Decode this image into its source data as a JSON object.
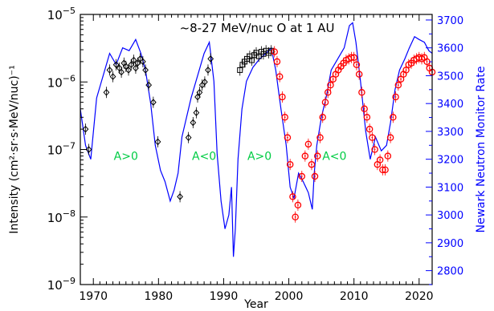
{
  "chart_data": {
    "type": "scatter",
    "title": "~8-27 MeV/nuc O at 1 AU",
    "xlabel": "Year",
    "ylabel": "Intensity (cm²·sr·s·MeV/nuc)⁻¹",
    "y2label": "Newark Neutron Monitor Rate",
    "xlim": [
      1968,
      2022
    ],
    "ylim": [
      1e-09,
      1e-05
    ],
    "yscale": "log",
    "y2lim": [
      2750,
      3720
    ],
    "x_ticks": [
      1970,
      1980,
      1990,
      2000,
      2010,
      2020
    ],
    "y_ticks": [
      {
        "value": 1e-09,
        "label": "10",
        "exp": "−9"
      },
      {
        "value": 1e-08,
        "label": "10",
        "exp": "−8"
      },
      {
        "value": 1e-07,
        "label": "10",
        "exp": "−7"
      },
      {
        "value": 1e-06,
        "label": "10",
        "exp": "−6"
      },
      {
        "value": 1e-05,
        "label": "10",
        "exp": "−5"
      }
    ],
    "y2_ticks": [
      2800,
      2900,
      3000,
      3100,
      3200,
      3300,
      3400,
      3500,
      3600,
      3700
    ],
    "colors": {
      "oxygen_early": "#000000",
      "oxygen_recent": "#ff0000",
      "neutron": "#0000ff",
      "polarity": "#00cc44"
    },
    "annotations": [
      {
        "text": "A>0",
        "x": 1975,
        "y": 8e-08
      },
      {
        "text": "A<0",
        "x": 1987,
        "y": 8e-08
      },
      {
        "text": "A>0",
        "x": 1995.5,
        "y": 8e-08
      },
      {
        "text": "A<0",
        "x": 2007,
        "y": 8e-08
      }
    ],
    "series": [
      {
        "marker": "diamond",
        "color": "#000000",
        "x": [
          1968.8,
          1969.3,
          1972.0,
          1972.5,
          1973.0,
          1973.5,
          1974.0,
          1974.3,
          1974.7,
          1975.0,
          1975.4,
          1975.8,
          1976.2,
          1976.5,
          1976.8,
          1977.2,
          1977.6,
          1978.0,
          1978.5,
          1979.2,
          1979.9,
          1983.3,
          1984.6,
          1985.3,
          1985.8,
          1986.0,
          1986.3,
          1986.7,
          1987.1,
          1987.6,
          1988.0
        ],
        "y": [
          2e-07,
          1e-07,
          7e-07,
          1.5e-06,
          1.2e-06,
          1.8e-06,
          1.6e-06,
          1.4e-06,
          1.9e-06,
          1.7e-06,
          1.5e-06,
          1.8e-06,
          2.1e-06,
          1.6e-06,
          1.9e-06,
          2.2e-06,
          2e-06,
          1.5e-06,
          9e-07,
          5e-07,
          1.3e-07,
          2e-08,
          1.5e-07,
          2.5e-07,
          3.5e-07,
          6e-07,
          7e-07,
          9e-07,
          1e-06,
          1.5e-06,
          2.2e-06
        ]
      },
      {
        "marker": "square",
        "color": "#000000",
        "x": [
          1992.5,
          1992.9,
          1993.2,
          1993.6,
          1994.0,
          1994.3,
          1994.7,
          1995.0,
          1995.4,
          1995.8,
          1996.1,
          1996.5,
          1996.9,
          1997.3
        ],
        "y": [
          1.5e-06,
          1.8e-06,
          2e-06,
          2.2e-06,
          2.4e-06,
          2.1e-06,
          2.5e-06,
          2.7e-06,
          2.4e-06,
          2.8e-06,
          2.6e-06,
          2.9e-06,
          2.7e-06,
          2.9e-06
        ]
      },
      {
        "marker": "circle-dot",
        "color": "#ff0000",
        "x": [
          1997.8,
          1998.2,
          1998.6,
          1999.0,
          1999.4,
          1999.8,
          2000.2,
          2000.6,
          2001.0,
          2001.4,
          2002.0,
          2002.5,
          2003.0,
          2003.5,
          2004.0,
          2004.4,
          2004.8,
          2005.2,
          2005.6,
          2006.0,
          2006.4,
          2006.8,
          2007.2,
          2007.6,
          2008.0,
          2008.4,
          2008.8,
          2009.2,
          2009.6,
          2010.0,
          2010.4,
          2010.8,
          2011.2,
          2011.6,
          2012.0,
          2012.4,
          2012.8,
          2013.2,
          2013.6,
          2014.0,
          2014.4,
          2014.8,
          2015.2,
          2015.6,
          2016.0,
          2016.4,
          2016.8,
          2017.2,
          2017.6,
          2018.0,
          2018.4,
          2018.8,
          2019.2,
          2019.6,
          2020.0,
          2020.4,
          2020.8,
          2021.2,
          2021.6,
          2022.0
        ],
        "y": [
          2.8e-06,
          2e-06,
          1.2e-06,
          6e-07,
          3e-07,
          1.5e-07,
          6e-08,
          2e-08,
          1e-08,
          1.5e-08,
          4e-08,
          8e-08,
          1.2e-07,
          6e-08,
          4e-08,
          8e-08,
          1.5e-07,
          3e-07,
          5e-07,
          7e-07,
          9e-07,
          1.1e-06,
          1.3e-06,
          1.5e-06,
          1.7e-06,
          1.9e-06,
          2.1e-06,
          2.2e-06,
          2.3e-06,
          2.3e-06,
          1.8e-06,
          1.3e-06,
          7e-07,
          4e-07,
          3e-07,
          2e-07,
          1.5e-07,
          1e-07,
          6e-08,
          7e-08,
          5e-08,
          5e-08,
          8e-08,
          1.5e-07,
          3e-07,
          6e-07,
          9e-07,
          1.1e-06,
          1.3e-06,
          1.5e-06,
          1.8e-06,
          1.9e-06,
          2.1e-06,
          2.2e-06,
          2.3e-06,
          2.2e-06,
          2.3e-06,
          2e-06,
          1.6e-06,
          1.4e-06
        ]
      },
      {
        "type": "line",
        "axis": "y2",
        "color": "#0000ff",
        "x": [
          1968.0,
          1968.8,
          1969.6,
          1970.5,
          1971.5,
          1972.5,
          1973.5,
          1974.5,
          1975.5,
          1976.5,
          1977.3,
          1978.0,
          1978.8,
          1979.5,
          1980.3,
          1981.0,
          1981.8,
          1982.4,
          1983.0,
          1983.6,
          1984.3,
          1985.0,
          1986.0,
          1987.0,
          1987.8,
          1988.5,
          1989.0,
          1989.6,
          1990.2,
          1990.8,
          1991.2,
          1991.5,
          1991.8,
          1992.2,
          1992.8,
          1993.5,
          1994.5,
          1995.5,
          1996.5,
          1997.3,
          1998.0,
          1998.8,
          1999.6,
          2000.2,
          2000.8,
          2001.5,
          2002.2,
          2003.0,
          2003.6,
          2003.9,
          2004.3,
          2005.0,
          2005.8,
          2006.5,
          2007.5,
          2008.5,
          2009.3,
          2009.8,
          2010.3,
          2011.0,
          2011.8,
          2012.5,
          2013.3,
          2014.2,
          2015.0,
          2015.6,
          2016.3,
          2017.0,
          2017.8,
          2018.5,
          2019.3,
          2020.0,
          2020.8,
          2021.5,
          2022.0
        ],
        "y": [
          3380,
          3250,
          3200,
          3420,
          3500,
          3580,
          3540,
          3600,
          3590,
          3630,
          3580,
          3520,
          3400,
          3250,
          3160,
          3120,
          3050,
          3090,
          3150,
          3280,
          3350,
          3420,
          3500,
          3580,
          3620,
          3480,
          3220,
          3050,
          2950,
          3000,
          3100,
          2850,
          2950,
          3200,
          3380,
          3480,
          3530,
          3560,
          3580,
          3600,
          3520,
          3380,
          3250,
          3100,
          3060,
          3150,
          3120,
          3080,
          3020,
          3150,
          3250,
          3350,
          3430,
          3520,
          3560,
          3600,
          3680,
          3690,
          3620,
          3480,
          3300,
          3200,
          3280,
          3230,
          3250,
          3330,
          3450,
          3520,
          3560,
          3600,
          3640,
          3630,
          3620,
          3590,
          3580
        ]
      }
    ]
  }
}
